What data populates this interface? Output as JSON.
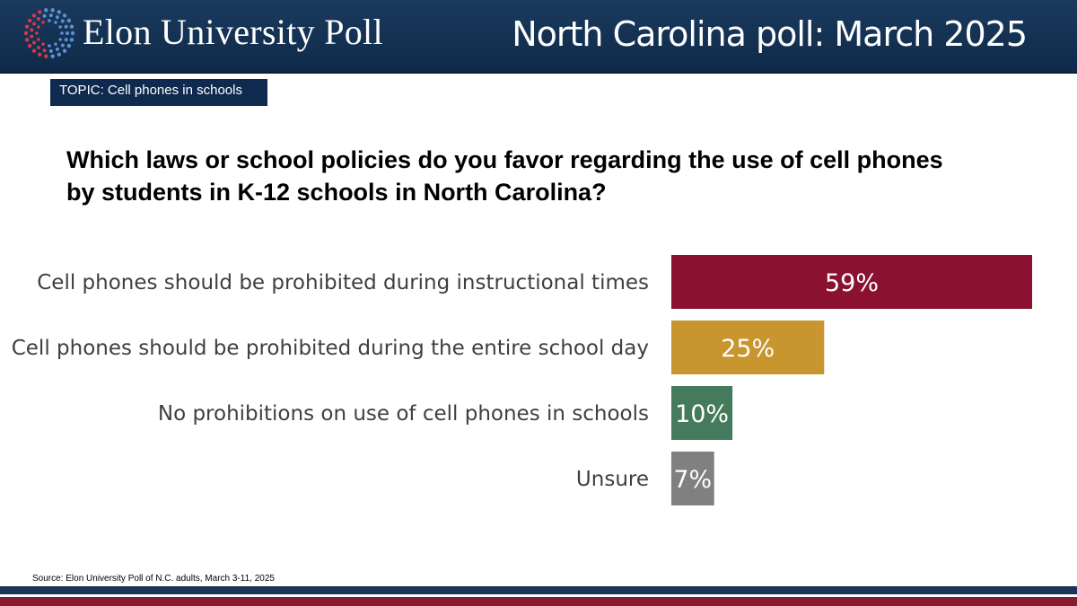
{
  "header": {
    "brand": "Elon University Poll",
    "title": "North Carolina poll: March 2025"
  },
  "topic": "TOPIC: Cell phones in schools",
  "question": "Which laws or school policies do you favor regarding the use of cell phones by students in K-12 schools in North Carolina?",
  "source": "Source: Elon University Poll of N.C. adults, March 3-11, 2025",
  "chart_data": {
    "type": "bar",
    "orientation": "horizontal",
    "categories": [
      "Cell phones should be prohibited during instructional times",
      "Cell phones should be prohibited during the entire school day",
      "No prohibitions on use of cell phones in schools",
      "Unsure"
    ],
    "values": [
      59,
      25,
      10,
      7
    ],
    "data_labels": [
      "59%",
      "25%",
      "10%",
      "7%"
    ],
    "colors": [
      "#8b1131",
      "#c8952e",
      "#467a5c",
      "#808080"
    ],
    "xlim": [
      0,
      59
    ],
    "grid": false,
    "legend": "none"
  }
}
